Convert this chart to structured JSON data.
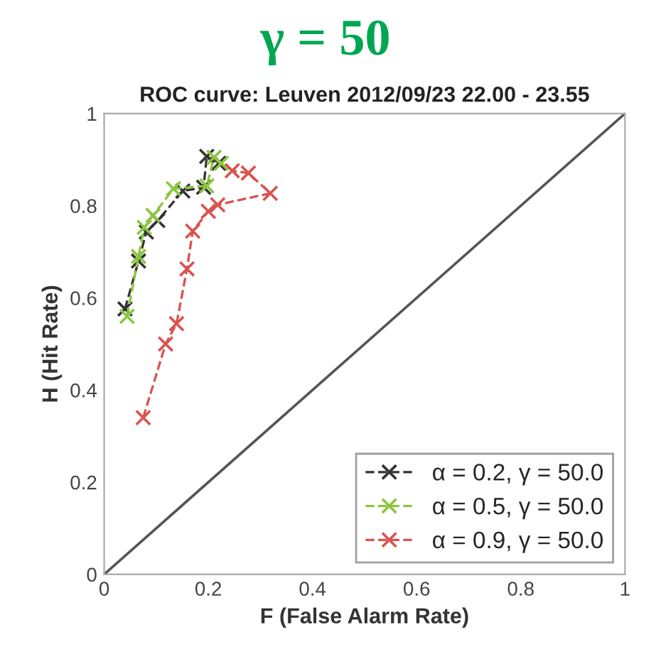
{
  "chart_data": {
    "type": "line",
    "title": "γ = 50",
    "subtitle": "ROC curve: Leuven 2012/09/23 22.00 - 23.55",
    "xlabel": "F (False Alarm Rate)",
    "ylabel": "H (Hit Rate)",
    "xlim": [
      0,
      1
    ],
    "ylim": [
      0,
      1
    ],
    "xticks": [
      0,
      0.2,
      0.4,
      0.6,
      0.8,
      1
    ],
    "yticks": [
      0,
      0.2,
      0.4,
      0.6,
      0.8,
      1
    ],
    "grid": false,
    "legend": "bottom right",
    "marker": "cross",
    "line_style": "dashed",
    "series": [
      {
        "name": "α = 0.2, γ = 50.0",
        "color": "#333333",
        "x": [
          0.04,
          0.066,
          0.081,
          0.103,
          0.151,
          0.191,
          0.197,
          0.22
        ],
        "values": [
          0.576,
          0.68,
          0.743,
          0.768,
          0.832,
          0.84,
          0.907,
          0.892
        ]
      },
      {
        "name": "α = 0.5, γ = 50.0",
        "color": "#8cc63f",
        "x": [
          0.044,
          0.066,
          0.077,
          0.094,
          0.133,
          0.197,
          0.211,
          0.225
        ],
        "values": [
          0.56,
          0.69,
          0.753,
          0.779,
          0.837,
          0.843,
          0.905,
          0.892
        ]
      },
      {
        "name": "α = 0.9, γ = 50.0",
        "color": "#d9534f",
        "x": [
          0.075,
          0.118,
          0.139,
          0.159,
          0.17,
          0.2,
          0.218,
          0.319,
          0.277,
          0.246
        ],
        "values": [
          0.34,
          0.5,
          0.544,
          0.663,
          0.745,
          0.788,
          0.802,
          0.827,
          0.871,
          0.876
        ]
      },
      {
        "type": "line",
        "color": "#555555",
        "line_style": "solid",
        "marker": "none",
        "x": [
          0,
          1
        ],
        "values": [
          0,
          1
        ]
      }
    ]
  }
}
